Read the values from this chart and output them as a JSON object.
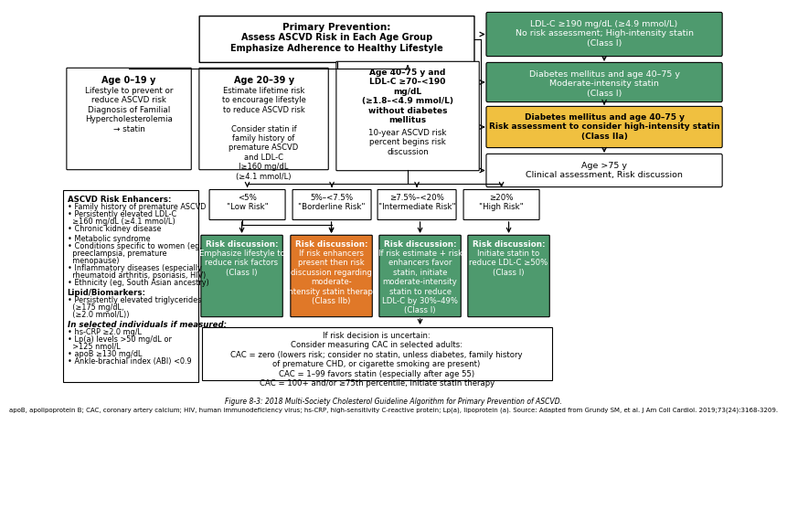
{
  "bg_color": "#ffffff",
  "title_italic": "Figure 8-3: 2018 Multi-Society Cholesterol Guideline Algorithm for Primary Prevention of ASCVD.",
  "subtitle": "apoB, apolipoprotein B; CAC, coronary artery calcium; HIV, human immunodeficiency virus; hs-CRP, high-sensitivity C-reactive protein; Lp(a), lipoprotein (a). Source: Adapted from Grundy SM, et al. J Am Coll Cardiol. 2019;73(24):3168-3209.",
  "green": "#4e9a6e",
  "orange": "#e07828",
  "yellow": "#f0c040",
  "white": "#ffffff",
  "black": "#000000",
  "gray_edge": "#333333"
}
